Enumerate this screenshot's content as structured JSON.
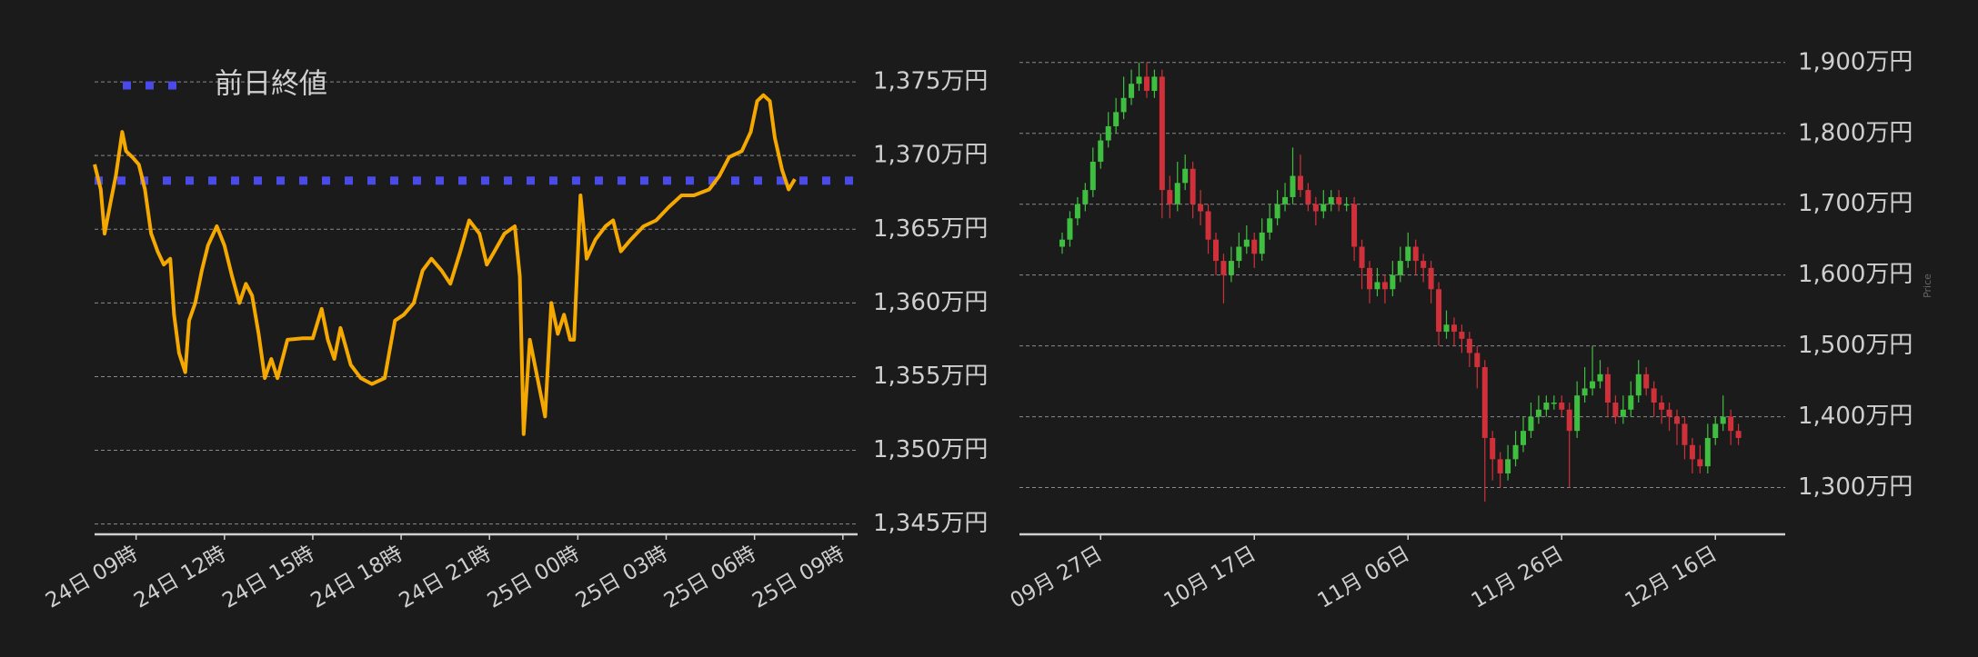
{
  "chart_data": [
    {
      "type": "line",
      "x": [
        7.59,
        7.8,
        7.93,
        8.14,
        8.31,
        8.53,
        8.66,
        8.87,
        9.09,
        9.3,
        9.51,
        9.73,
        9.94,
        10.16,
        10.29,
        10.46,
        10.67,
        10.8,
        11.01,
        11.23,
        11.44,
        11.74,
        12.0,
        12.26,
        12.51,
        12.73,
        12.94,
        13.16,
        13.37,
        13.59,
        13.8,
        14.14,
        14.66,
        15.0,
        15.3,
        15.51,
        15.73,
        15.94,
        16.29,
        16.63,
        17.01,
        17.44,
        17.79,
        18.09,
        18.43,
        18.73,
        19.03,
        19.37,
        19.67,
        20.01,
        20.31,
        20.66,
        20.91,
        21.17,
        21.51,
        21.86,
        22.03,
        22.16,
        22.37,
        22.63,
        22.89,
        23.1,
        23.32,
        23.53,
        23.74,
        23.87,
        24.09,
        24.3,
        24.6,
        24.94,
        25.2,
        25.46,
        25.8,
        26.23,
        26.66,
        27.09,
        27.52,
        27.94,
        28.46,
        28.8,
        29.14,
        29.57,
        29.87,
        30.09,
        30.3,
        30.52,
        30.69,
        30.94,
        31.16,
        31.37
      ],
      "series": [
        {
          "color": "#f5a800",
          "values": [
            1369.4,
            1367.7,
            1364.7,
            1366.9,
            1368.6,
            1371.6,
            1370.3,
            1369.9,
            1369.4,
            1367.7,
            1364.7,
            1363.5,
            1362.6,
            1363.0,
            1359.2,
            1356.6,
            1355.3,
            1358.8,
            1360.0,
            1362.2,
            1363.9,
            1365.2,
            1363.9,
            1361.8,
            1360.0,
            1361.3,
            1360.5,
            1357.9,
            1354.9,
            1356.2,
            1354.9,
            1357.5,
            1357.6,
            1357.6,
            1359.6,
            1357.5,
            1356.2,
            1358.3,
            1355.8,
            1354.9,
            1354.5,
            1354.9,
            1358.8,
            1359.2,
            1360.0,
            1362.2,
            1363.0,
            1362.2,
            1361.3,
            1363.5,
            1365.6,
            1364.7,
            1362.6,
            1363.5,
            1364.7,
            1365.2,
            1361.8,
            1351.1,
            1357.5,
            1354.9,
            1352.3,
            1360.0,
            1357.9,
            1359.2,
            1357.5,
            1357.5,
            1367.3,
            1363.0,
            1364.3,
            1365.2,
            1365.6,
            1363.5,
            1364.3,
            1365.2,
            1365.6,
            1366.5,
            1367.3,
            1367.3,
            1367.7,
            1368.6,
            1369.9,
            1370.3,
            1371.6,
            1373.7,
            1374.1,
            1373.7,
            1371.2,
            1369.0,
            1367.7,
            1368.4
          ]
        }
      ],
      "reference_lines": [
        {
          "name": "前日終値",
          "value": 1368.3,
          "color": "#4a4ae8"
        }
      ],
      "legend": "upper left",
      "xlim": [
        7.59,
        33.5
      ],
      "xticks": [
        {
          "value": 9,
          "label": "24日 09時"
        },
        {
          "value": 12,
          "label": "24日 12時"
        },
        {
          "value": 15,
          "label": "24日 15時"
        },
        {
          "value": 18,
          "label": "24日 18時"
        },
        {
          "value": 21,
          "label": "24日 21時"
        },
        {
          "value": 24,
          "label": "25日 00時"
        },
        {
          "value": 27,
          "label": "25日 03時"
        },
        {
          "value": 30,
          "label": "25日 06時"
        },
        {
          "value": 33,
          "label": "25日 09時"
        }
      ],
      "ylim": [
        1344.3,
        1376.3
      ],
      "yticks": [
        {
          "value": 1345,
          "label": "1,345万円"
        },
        {
          "value": 1350,
          "label": "1,350万円"
        },
        {
          "value": 1355,
          "label": "1,355万円"
        },
        {
          "value": 1360,
          "label": "1,360万円"
        },
        {
          "value": 1365,
          "label": "1,365万円"
        },
        {
          "value": 1370,
          "label": "1,370万円"
        },
        {
          "value": 1375,
          "label": "1,375万円"
        }
      ],
      "grid": true
    },
    {
      "type": "candlestick",
      "y_label": "Price",
      "categories": [
        null,
        null,
        null,
        null,
        null,
        "09月 27日",
        null,
        null,
        null,
        null,
        null,
        null,
        null,
        null,
        null,
        null,
        null,
        null,
        null,
        null,
        null,
        null,
        null,
        null,
        null,
        "10月 17日",
        null,
        null,
        null,
        null,
        null,
        null,
        null,
        null,
        null,
        null,
        null,
        null,
        null,
        null,
        null,
        null,
        null,
        null,
        null,
        "11月 06日",
        null,
        null,
        null,
        null,
        null,
        null,
        null,
        null,
        null,
        null,
        null,
        null,
        null,
        null,
        null,
        null,
        null,
        null,
        null,
        "11月 26日",
        null,
        null,
        null,
        null,
        null,
        null,
        null,
        null,
        null,
        null,
        null,
        null,
        null,
        null,
        null,
        null,
        null,
        null,
        null,
        "12月 16日",
        null,
        null,
        null
      ],
      "open": [
        1640,
        1650,
        1680,
        1700,
        1720,
        1760,
        1790,
        1810,
        1830,
        1850,
        1870,
        1880,
        1860,
        1880,
        1720,
        1700,
        1730,
        1750,
        1700,
        1690,
        1650,
        1620,
        1600,
        1620,
        1640,
        1650,
        1630,
        1660,
        1680,
        1700,
        1710,
        1740,
        1720,
        1700,
        1690,
        1700,
        1710,
        1700,
        1700,
        1640,
        1610,
        1580,
        1590,
        1580,
        1600,
        1620,
        1640,
        1620,
        1610,
        1580,
        1520,
        1530,
        1520,
        1510,
        1490,
        1470,
        1370,
        1340,
        1320,
        1340,
        1360,
        1380,
        1400,
        1410,
        1420,
        1420,
        1410,
        1380,
        1430,
        1440,
        1450,
        1460,
        1420,
        1400,
        1410,
        1430,
        1460,
        1440,
        1420,
        1410,
        1400,
        1390,
        1360,
        1340,
        1330,
        1370,
        1390,
        1400,
        1380
      ],
      "high": [
        1660,
        1690,
        1710,
        1730,
        1780,
        1800,
        1830,
        1850,
        1880,
        1890,
        1900,
        1900,
        1890,
        1890,
        1740,
        1760,
        1770,
        1760,
        1720,
        1700,
        1660,
        1630,
        1640,
        1660,
        1670,
        1660,
        1680,
        1700,
        1720,
        1730,
        1780,
        1770,
        1730,
        1710,
        1720,
        1720,
        1720,
        1710,
        1710,
        1650,
        1620,
        1610,
        1600,
        1620,
        1640,
        1660,
        1650,
        1630,
        1620,
        1590,
        1550,
        1540,
        1530,
        1520,
        1500,
        1480,
        1380,
        1350,
        1360,
        1380,
        1400,
        1420,
        1430,
        1430,
        1430,
        1430,
        1420,
        1450,
        1470,
        1500,
        1480,
        1470,
        1430,
        1430,
        1450,
        1480,
        1470,
        1450,
        1430,
        1420,
        1410,
        1400,
        1370,
        1360,
        1390,
        1400,
        1430,
        1410,
        1390
      ],
      "low": [
        1630,
        1640,
        1670,
        1690,
        1710,
        1750,
        1780,
        1800,
        1820,
        1840,
        1860,
        1850,
        1850,
        1680,
        1680,
        1690,
        1720,
        1680,
        1670,
        1630,
        1600,
        1560,
        1590,
        1610,
        1630,
        1610,
        1620,
        1650,
        1670,
        1690,
        1700,
        1710,
        1690,
        1670,
        1680,
        1690,
        1690,
        1690,
        1620,
        1580,
        1560,
        1570,
        1560,
        1570,
        1590,
        1610,
        1600,
        1590,
        1560,
        1500,
        1510,
        1500,
        1490,
        1470,
        1440,
        1280,
        1310,
        1300,
        1310,
        1330,
        1350,
        1370,
        1390,
        1400,
        1410,
        1400,
        1300,
        1370,
        1420,
        1430,
        1440,
        1400,
        1390,
        1390,
        1400,
        1420,
        1430,
        1400,
        1390,
        1380,
        1360,
        1340,
        1320,
        1320,
        1320,
        1360,
        1380,
        1360,
        1360
      ],
      "close": [
        1650,
        1680,
        1700,
        1720,
        1760,
        1790,
        1810,
        1830,
        1850,
        1870,
        1880,
        1860,
        1880,
        1720,
        1700,
        1730,
        1750,
        1700,
        1690,
        1650,
        1620,
        1600,
        1620,
        1640,
        1650,
        1630,
        1660,
        1680,
        1700,
        1710,
        1740,
        1720,
        1700,
        1690,
        1700,
        1710,
        1700,
        1700,
        1640,
        1610,
        1580,
        1590,
        1580,
        1600,
        1620,
        1640,
        1620,
        1610,
        1580,
        1520,
        1530,
        1520,
        1510,
        1490,
        1470,
        1370,
        1340,
        1320,
        1340,
        1360,
        1380,
        1400,
        1410,
        1420,
        1420,
        1410,
        1380,
        1430,
        1440,
        1450,
        1460,
        1420,
        1400,
        1410,
        1430,
        1460,
        1440,
        1420,
        1410,
        1400,
        1390,
        1360,
        1340,
        1330,
        1370,
        1390,
        1400,
        1380,
        1370
      ],
      "up_color": "#3fbf3f",
      "down_color": "#d0303a",
      "ylim": [
        1234,
        1910
      ],
      "yticks": [
        {
          "value": 1300,
          "label": "1,300万円"
        },
        {
          "value": 1400,
          "label": "1,400万円"
        },
        {
          "value": 1500,
          "label": "1,500万円"
        },
        {
          "value": 1600,
          "label": "1,600万円"
        },
        {
          "value": 1700,
          "label": "1,700万円"
        },
        {
          "value": 1800,
          "label": "1,800万円"
        },
        {
          "value": 1900,
          "label": "1,900万円"
        }
      ],
      "grid": true
    }
  ]
}
